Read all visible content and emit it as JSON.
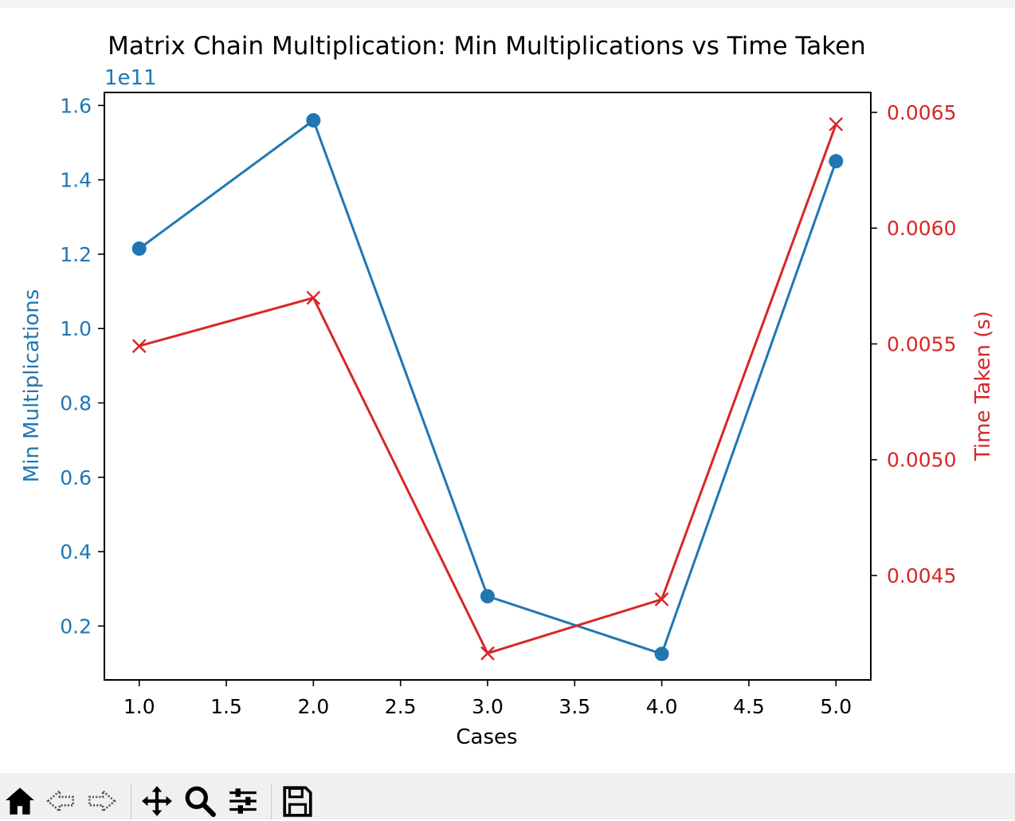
{
  "colors": {
    "series1": "#1f77b4",
    "series2": "#d62728",
    "axis": "#000000",
    "toolbar_bg": "#f0f0f0"
  },
  "chart_data": {
    "type": "line",
    "title": "Matrix Chain Multiplication: Min Multiplications vs Time Taken",
    "xlabel": "Cases",
    "ylabel_left": "Min Multiplications",
    "ylabel_right": "Time Taken (s)",
    "left_offset_text": "1e11",
    "x": [
      1,
      2,
      3,
      4,
      5
    ],
    "xlim": [
      0.8,
      5.2
    ],
    "x_ticks": [
      "1.0",
      "1.5",
      "2.0",
      "2.5",
      "3.0",
      "3.5",
      "4.0",
      "4.5",
      "5.0"
    ],
    "x_tick_values": [
      1.0,
      1.5,
      2.0,
      2.5,
      3.0,
      3.5,
      4.0,
      4.5,
      5.0
    ],
    "ylim_left": [
      0.055,
      1.635
    ],
    "y_ticks_left": [
      "0.2",
      "0.4",
      "0.6",
      "0.8",
      "1.0",
      "1.2",
      "1.4",
      "1.6"
    ],
    "y_tick_values_left": [
      0.2,
      0.4,
      0.6,
      0.8,
      1.0,
      1.2,
      1.4,
      1.6
    ],
    "ylim_right": [
      0.004049,
      0.006586
    ],
    "y_ticks_right": [
      "0.0045",
      "0.0050",
      "0.0055",
      "0.0060",
      "0.0065"
    ],
    "y_tick_values_right": [
      0.0045,
      0.005,
      0.0055,
      0.006,
      0.0065
    ],
    "grid": false,
    "series": [
      {
        "axis": "left",
        "marker": "circle",
        "color": "#1f77b4",
        "values": [
          1.215,
          1.56,
          0.28,
          0.125,
          1.45
        ]
      },
      {
        "axis": "right",
        "marker": "x",
        "color": "#d62728",
        "values": [
          0.005491,
          0.005699,
          0.004164,
          0.004397,
          0.006449
        ]
      }
    ]
  },
  "toolbar": {
    "buttons": [
      {
        "name": "home-icon",
        "glyph": "home"
      },
      {
        "name": "back-arrow-icon",
        "glyph": "back"
      },
      {
        "name": "forward-arrow-icon",
        "glyph": "forward"
      },
      {
        "name": "pan-icon",
        "glyph": "pan"
      },
      {
        "name": "zoom-icon",
        "glyph": "zoom"
      },
      {
        "name": "configure-subplots-icon",
        "glyph": "sliders"
      },
      {
        "name": "save-icon",
        "glyph": "save"
      }
    ]
  }
}
